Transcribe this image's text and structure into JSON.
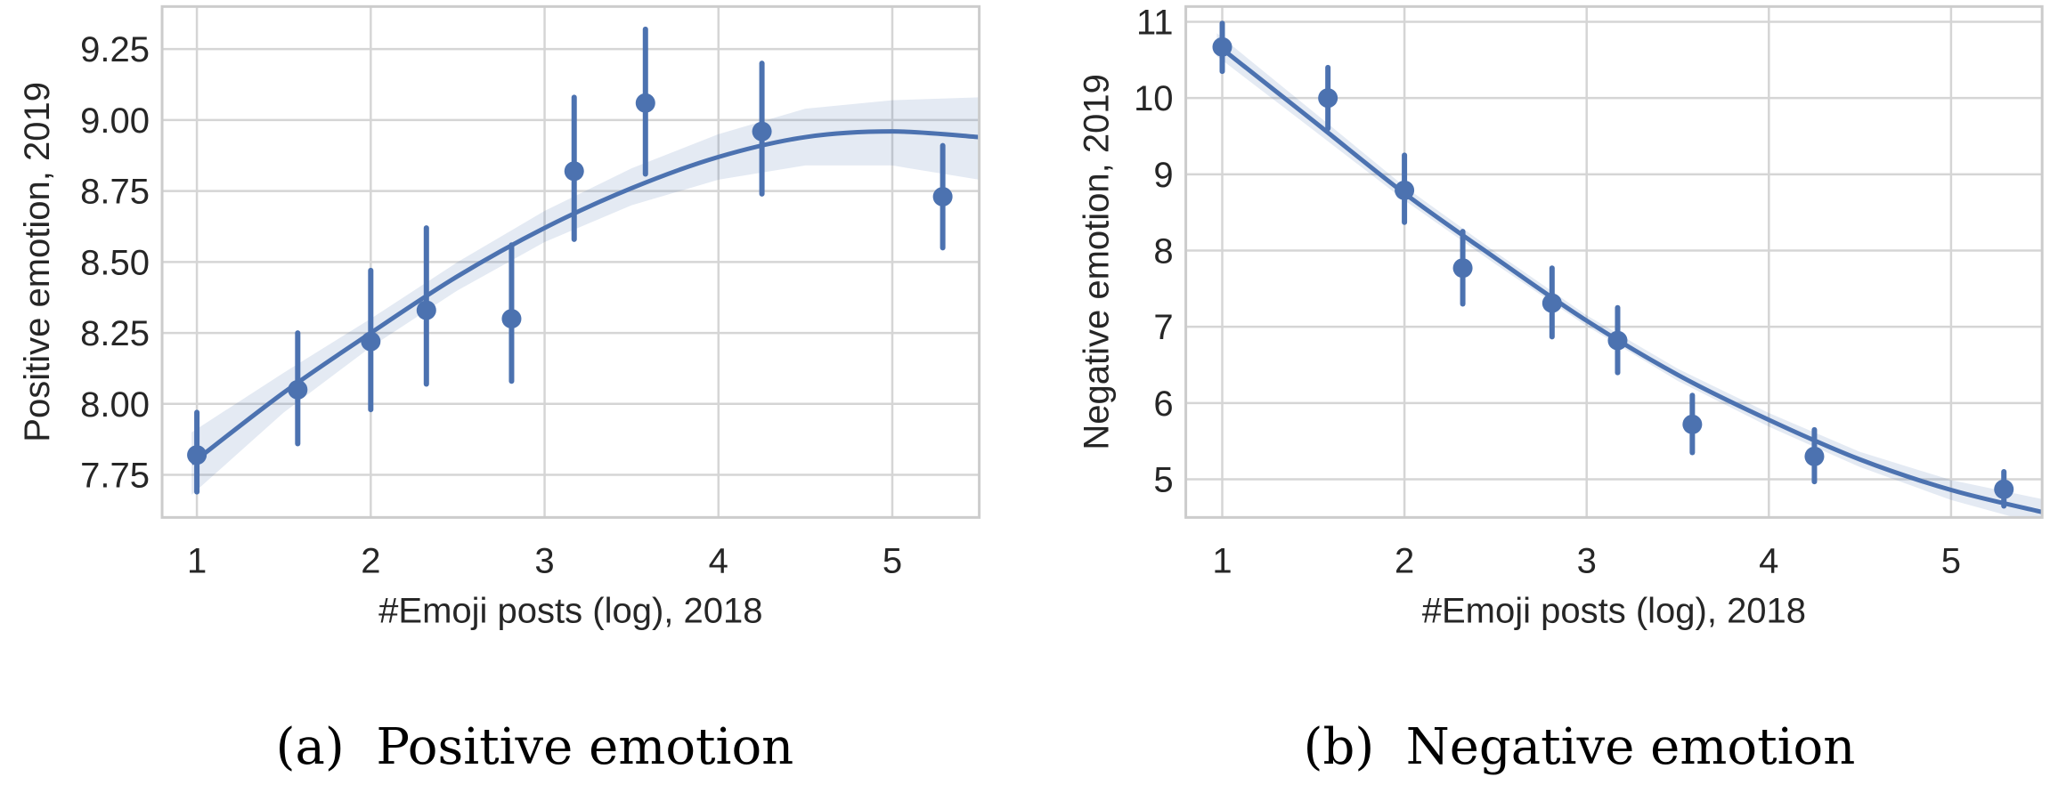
{
  "chart_data": [
    {
      "type": "scatter",
      "caption": "(a)  Positive emotion",
      "xlabel": "#Emoji posts (log), 2018",
      "ylabel": "Positive emotion, 2019",
      "xlim": [
        0.8,
        5.5
      ],
      "ylim": [
        7.6,
        9.4
      ],
      "xticks": [
        1,
        2,
        3,
        4,
        5
      ],
      "xtick_labels": [
        "1",
        "2",
        "3",
        "4",
        "5"
      ],
      "yticks": [
        7.75,
        8.0,
        8.25,
        8.5,
        8.75,
        9.0,
        9.25
      ],
      "ytick_labels": [
        "7.75",
        "8.00",
        "8.25",
        "8.50",
        "8.75",
        "9.00",
        "9.25"
      ],
      "grid": true,
      "color": "#4c72b0",
      "points": {
        "x": [
          1.0,
          1.58,
          2.0,
          2.32,
          2.81,
          3.17,
          3.58,
          4.25,
          5.29
        ],
        "y": [
          7.82,
          8.05,
          8.22,
          8.33,
          8.3,
          8.82,
          9.06,
          8.96,
          8.73
        ],
        "ci_low": [
          7.69,
          7.86,
          7.98,
          8.07,
          8.08,
          8.58,
          8.81,
          8.74,
          8.55
        ],
        "ci_high": [
          7.97,
          8.25,
          8.47,
          8.62,
          8.56,
          9.08,
          9.32,
          9.2,
          8.91
        ]
      },
      "fit": {
        "order": 2,
        "x": [
          0.97,
          1.5,
          2.0,
          2.5,
          3.0,
          3.5,
          4.0,
          4.5,
          5.0,
          5.5
        ],
        "y": [
          7.79,
          8.04,
          8.25,
          8.45,
          8.62,
          8.76,
          8.87,
          8.94,
          8.96,
          8.94
        ],
        "ci_low": [
          7.68,
          7.97,
          8.2,
          8.4,
          8.57,
          8.7,
          8.79,
          8.84,
          8.84,
          8.79
        ],
        "ci_high": [
          7.9,
          8.11,
          8.3,
          8.5,
          8.68,
          8.83,
          8.95,
          9.04,
          9.07,
          9.08
        ]
      }
    },
    {
      "type": "scatter",
      "caption": "(b)  Negative emotion",
      "xlabel": "#Emoji posts (log), 2018",
      "ylabel": "Negative emotion, 2019",
      "xlim": [
        0.8,
        5.5
      ],
      "ylim": [
        4.5,
        11.2
      ],
      "xticks": [
        1,
        2,
        3,
        4,
        5
      ],
      "xtick_labels": [
        "1",
        "2",
        "3",
        "4",
        "5"
      ],
      "yticks": [
        5,
        6,
        7,
        8,
        9,
        10,
        11
      ],
      "ytick_labels": [
        "5",
        "6",
        "7",
        "8",
        "9",
        "10",
        "11"
      ],
      "grid": true,
      "color": "#4c72b0",
      "points": {
        "x": [
          1.0,
          1.58,
          2.0,
          2.32,
          2.81,
          3.17,
          3.58,
          4.25,
          5.29
        ],
        "y": [
          10.67,
          10.0,
          8.79,
          7.77,
          7.31,
          6.82,
          5.72,
          5.3,
          4.87
        ],
        "ci_low": [
          10.35,
          9.6,
          8.37,
          7.3,
          6.87,
          6.4,
          5.35,
          4.97,
          4.65
        ],
        "ci_high": [
          10.98,
          10.4,
          9.25,
          8.25,
          7.77,
          7.25,
          6.1,
          5.65,
          5.1
        ]
      },
      "fit": {
        "order": 2,
        "x": [
          0.97,
          1.5,
          2.0,
          2.5,
          3.0,
          3.5,
          4.0,
          4.5,
          5.0,
          5.5
        ],
        "y": [
          10.7,
          9.7,
          8.75,
          7.9,
          7.08,
          6.37,
          5.78,
          5.26,
          4.86,
          4.57
        ],
        "ci_low": [
          10.55,
          9.58,
          8.66,
          7.82,
          7.01,
          6.29,
          5.69,
          5.16,
          4.73,
          4.4
        ],
        "ci_high": [
          10.85,
          9.82,
          8.84,
          7.98,
          7.15,
          6.45,
          5.87,
          5.36,
          4.99,
          4.74
        ]
      }
    }
  ]
}
